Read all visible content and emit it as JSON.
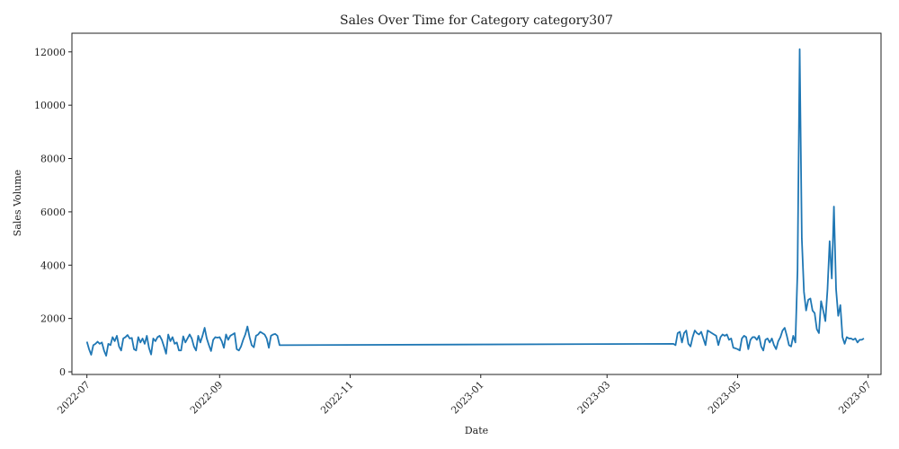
{
  "chart_data": {
    "type": "line",
    "title": "Sales Over Time for Category category307",
    "xlabel": "Date",
    "ylabel": "Sales Volume",
    "xlim": [
      "2022-06-24",
      "2023-07-07"
    ],
    "ylim": [
      -100,
      12700
    ],
    "grid": false,
    "x_ticks": [
      "2022-07",
      "2022-09",
      "2022-11",
      "2023-01",
      "2023-03",
      "2023-05",
      "2023-07"
    ],
    "x_tick_dates": [
      "2022-07-01",
      "2022-09-01",
      "2022-11-01",
      "2023-01-01",
      "2023-03-01",
      "2023-05-01",
      "2023-07-01"
    ],
    "y_ticks": [
      0,
      2000,
      4000,
      6000,
      8000,
      10000,
      12000
    ],
    "series": [
      {
        "color": "#1f77b4",
        "points": [
          [
            "2022-07-01",
            1130
          ],
          [
            "2022-07-02",
            850
          ],
          [
            "2022-07-03",
            640
          ],
          [
            "2022-07-04",
            1000
          ],
          [
            "2022-07-05",
            1050
          ],
          [
            "2022-07-06",
            1130
          ],
          [
            "2022-07-07",
            1050
          ],
          [
            "2022-07-08",
            1100
          ],
          [
            "2022-07-09",
            800
          ],
          [
            "2022-07-10",
            600
          ],
          [
            "2022-07-11",
            1050
          ],
          [
            "2022-07-12",
            1000
          ],
          [
            "2022-07-13",
            1300
          ],
          [
            "2022-07-14",
            1150
          ],
          [
            "2022-07-15",
            1350
          ],
          [
            "2022-07-16",
            950
          ],
          [
            "2022-07-17",
            800
          ],
          [
            "2022-07-18",
            1250
          ],
          [
            "2022-07-19",
            1300
          ],
          [
            "2022-07-20",
            1380
          ],
          [
            "2022-07-21",
            1250
          ],
          [
            "2022-07-22",
            1270
          ],
          [
            "2022-07-23",
            850
          ],
          [
            "2022-07-24",
            800
          ],
          [
            "2022-07-25",
            1300
          ],
          [
            "2022-07-26",
            1100
          ],
          [
            "2022-07-27",
            1250
          ],
          [
            "2022-07-28",
            1050
          ],
          [
            "2022-07-29",
            1350
          ],
          [
            "2022-07-30",
            900
          ],
          [
            "2022-07-31",
            650
          ],
          [
            "2022-08-01",
            1250
          ],
          [
            "2022-08-02",
            1150
          ],
          [
            "2022-08-03",
            1300
          ],
          [
            "2022-08-04",
            1350
          ],
          [
            "2022-08-05",
            1200
          ],
          [
            "2022-08-06",
            950
          ],
          [
            "2022-08-07",
            680
          ],
          [
            "2022-08-08",
            1400
          ],
          [
            "2022-08-09",
            1150
          ],
          [
            "2022-08-10",
            1300
          ],
          [
            "2022-08-11",
            1050
          ],
          [
            "2022-08-12",
            1100
          ],
          [
            "2022-08-13",
            800
          ],
          [
            "2022-08-14",
            800
          ],
          [
            "2022-08-15",
            1330
          ],
          [
            "2022-08-16",
            1100
          ],
          [
            "2022-08-17",
            1250
          ],
          [
            "2022-08-18",
            1400
          ],
          [
            "2022-08-19",
            1250
          ],
          [
            "2022-08-20",
            950
          ],
          [
            "2022-08-21",
            800
          ],
          [
            "2022-08-22",
            1350
          ],
          [
            "2022-08-23",
            1100
          ],
          [
            "2022-08-24",
            1350
          ],
          [
            "2022-08-25",
            1650
          ],
          [
            "2022-08-26",
            1250
          ],
          [
            "2022-08-27",
            1000
          ],
          [
            "2022-08-28",
            780
          ],
          [
            "2022-08-29",
            1200
          ],
          [
            "2022-08-30",
            1300
          ],
          [
            "2022-08-31",
            1280
          ],
          [
            "2022-09-01",
            1300
          ],
          [
            "2022-09-02",
            1150
          ],
          [
            "2022-09-03",
            900
          ],
          [
            "2022-09-04",
            1400
          ],
          [
            "2022-09-05",
            1200
          ],
          [
            "2022-09-06",
            1350
          ],
          [
            "2022-09-07",
            1400
          ],
          [
            "2022-09-08",
            1450
          ],
          [
            "2022-09-09",
            850
          ],
          [
            "2022-09-10",
            800
          ],
          [
            "2022-09-11",
            950
          ],
          [
            "2022-09-12",
            1200
          ],
          [
            "2022-09-13",
            1400
          ],
          [
            "2022-09-14",
            1700
          ],
          [
            "2022-09-15",
            1300
          ],
          [
            "2022-09-16",
            1000
          ],
          [
            "2022-09-17",
            920
          ],
          [
            "2022-09-18",
            1350
          ],
          [
            "2022-09-19",
            1400
          ],
          [
            "2022-09-20",
            1500
          ],
          [
            "2022-09-21",
            1450
          ],
          [
            "2022-09-22",
            1400
          ],
          [
            "2022-09-23",
            1250
          ],
          [
            "2022-09-24",
            900
          ],
          [
            "2022-09-25",
            1350
          ],
          [
            "2022-09-26",
            1400
          ],
          [
            "2022-09-27",
            1420
          ],
          [
            "2022-09-28",
            1350
          ],
          [
            "2022-09-29",
            1000
          ],
          [
            "2023-04-01",
            1050
          ],
          [
            "2023-04-02",
            1000
          ],
          [
            "2023-04-03",
            1450
          ],
          [
            "2023-04-04",
            1500
          ],
          [
            "2023-04-05",
            1100
          ],
          [
            "2023-04-06",
            1450
          ],
          [
            "2023-04-07",
            1550
          ],
          [
            "2023-04-08",
            1050
          ],
          [
            "2023-04-09",
            950
          ],
          [
            "2023-04-10",
            1300
          ],
          [
            "2023-04-11",
            1550
          ],
          [
            "2023-04-12",
            1450
          ],
          [
            "2023-04-13",
            1400
          ],
          [
            "2023-04-14",
            1500
          ],
          [
            "2023-04-15",
            1250
          ],
          [
            "2023-04-16",
            1000
          ],
          [
            "2023-04-17",
            1550
          ],
          [
            "2023-04-18",
            1500
          ],
          [
            "2023-04-19",
            1450
          ],
          [
            "2023-04-20",
            1400
          ],
          [
            "2023-04-21",
            1350
          ],
          [
            "2023-04-22",
            1000
          ],
          [
            "2023-04-23",
            1300
          ],
          [
            "2023-04-24",
            1400
          ],
          [
            "2023-04-25",
            1350
          ],
          [
            "2023-04-26",
            1400
          ],
          [
            "2023-04-27",
            1200
          ],
          [
            "2023-04-28",
            1250
          ],
          [
            "2023-04-29",
            900
          ],
          [
            "2023-04-30",
            880
          ],
          [
            "2023-05-01",
            850
          ],
          [
            "2023-05-02",
            800
          ],
          [
            "2023-05-03",
            1250
          ],
          [
            "2023-05-04",
            1350
          ],
          [
            "2023-05-05",
            1300
          ],
          [
            "2023-05-06",
            850
          ],
          [
            "2023-05-07",
            1200
          ],
          [
            "2023-05-08",
            1300
          ],
          [
            "2023-05-09",
            1300
          ],
          [
            "2023-05-10",
            1200
          ],
          [
            "2023-05-11",
            1350
          ],
          [
            "2023-05-12",
            950
          ],
          [
            "2023-05-13",
            800
          ],
          [
            "2023-05-14",
            1200
          ],
          [
            "2023-05-15",
            1250
          ],
          [
            "2023-05-16",
            1100
          ],
          [
            "2023-05-17",
            1250
          ],
          [
            "2023-05-18",
            1000
          ],
          [
            "2023-05-19",
            850
          ],
          [
            "2023-05-20",
            1150
          ],
          [
            "2023-05-21",
            1300
          ],
          [
            "2023-05-22",
            1550
          ],
          [
            "2023-05-23",
            1650
          ],
          [
            "2023-05-24",
            1350
          ],
          [
            "2023-05-25",
            1000
          ],
          [
            "2023-05-26",
            950
          ],
          [
            "2023-05-27",
            1350
          ],
          [
            "2023-05-28",
            1100
          ],
          [
            "2023-05-29",
            3800
          ],
          [
            "2023-05-30",
            12100
          ],
          [
            "2023-05-31",
            5000
          ],
          [
            "2023-06-01",
            3000
          ],
          [
            "2023-06-02",
            2300
          ],
          [
            "2023-06-03",
            2700
          ],
          [
            "2023-06-04",
            2750
          ],
          [
            "2023-06-05",
            2300
          ],
          [
            "2023-06-06",
            2200
          ],
          [
            "2023-06-07",
            1600
          ],
          [
            "2023-06-08",
            1450
          ],
          [
            "2023-06-09",
            2650
          ],
          [
            "2023-06-10",
            2300
          ],
          [
            "2023-06-11",
            1900
          ],
          [
            "2023-06-12",
            3100
          ],
          [
            "2023-06-13",
            4900
          ],
          [
            "2023-06-14",
            3500
          ],
          [
            "2023-06-15",
            6200
          ],
          [
            "2023-06-16",
            3100
          ],
          [
            "2023-06-17",
            2100
          ],
          [
            "2023-06-18",
            2500
          ],
          [
            "2023-06-19",
            1300
          ],
          [
            "2023-06-20",
            1050
          ],
          [
            "2023-06-21",
            1300
          ],
          [
            "2023-06-22",
            1250
          ],
          [
            "2023-06-23",
            1250
          ],
          [
            "2023-06-24",
            1200
          ],
          [
            "2023-06-25",
            1250
          ],
          [
            "2023-06-26",
            1100
          ],
          [
            "2023-06-27",
            1200
          ],
          [
            "2023-06-28",
            1200
          ],
          [
            "2023-06-29",
            1250
          ]
        ]
      }
    ]
  }
}
